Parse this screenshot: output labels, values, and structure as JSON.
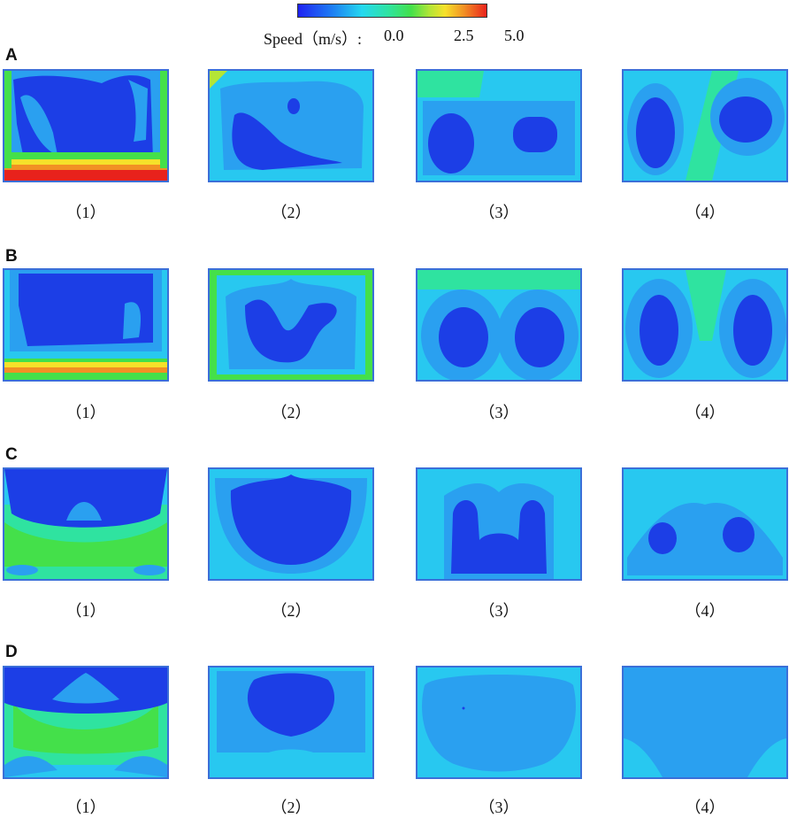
{
  "legend": {
    "label": "Speed（m/s）:",
    "ticks": [
      "0.0",
      "2.5",
      "5.0"
    ],
    "colors": [
      "#1e22f2",
      "#1d7df3",
      "#25d8ef",
      "#2fe3a0",
      "#44e04a",
      "#b4e536",
      "#f6e12a",
      "#f29024",
      "#e8221c"
    ]
  },
  "rows": [
    {
      "label": "A",
      "captions": [
        "（1）",
        "（2）",
        "（3）",
        "（4）"
      ]
    },
    {
      "label": "B",
      "captions": [
        "（1）",
        "（2）",
        "（3）",
        "（4）"
      ]
    },
    {
      "label": "C",
      "captions": [
        "（1）",
        "（2）",
        "（3）",
        "（4）"
      ]
    },
    {
      "label": "D",
      "captions": [
        "（1）",
        "（2）",
        "（3）",
        "（4）"
      ]
    }
  ]
}
